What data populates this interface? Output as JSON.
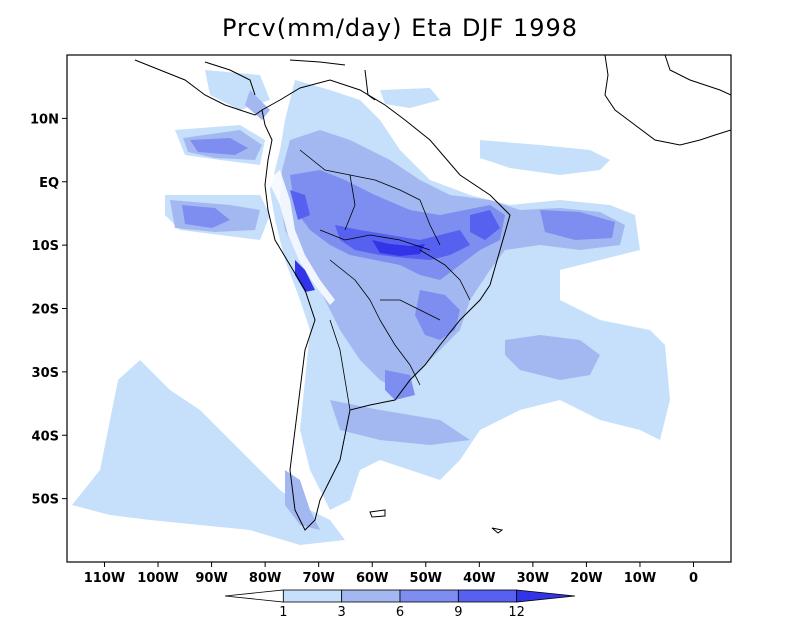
{
  "title": "Prcv(mm/day) Eta DJF 1998",
  "map": {
    "lon_range": [
      -117,
      7
    ],
    "lat_range": [
      -60,
      20
    ],
    "lon_ticks": [
      {
        "value": -110,
        "label": "110W"
      },
      {
        "value": -100,
        "label": "100W"
      },
      {
        "value": -90,
        "label": "90W"
      },
      {
        "value": -80,
        "label": "80W"
      },
      {
        "value": -70,
        "label": "70W"
      },
      {
        "value": -60,
        "label": "60W"
      },
      {
        "value": -50,
        "label": "50W"
      },
      {
        "value": -40,
        "label": "40W"
      },
      {
        "value": -30,
        "label": "30W"
      },
      {
        "value": -20,
        "label": "20W"
      },
      {
        "value": -10,
        "label": "10W"
      },
      {
        "value": 0,
        "label": "0"
      }
    ],
    "lat_ticks": [
      {
        "value": 10,
        "label": "10N"
      },
      {
        "value": 0,
        "label": "EQ"
      },
      {
        "value": -10,
        "label": "10S"
      },
      {
        "value": -20,
        "label": "20S"
      },
      {
        "value": -30,
        "label": "30S"
      },
      {
        "value": -40,
        "label": "40S"
      },
      {
        "value": -50,
        "label": "50S"
      }
    ]
  },
  "colorbar": {
    "levels": [
      "1",
      "3",
      "6",
      "9",
      "12"
    ],
    "colors": [
      "#ffffff",
      "#c6e0fb",
      "#a3b8f0",
      "#7d8ef0",
      "#5661ef",
      "#3333e8"
    ]
  }
}
